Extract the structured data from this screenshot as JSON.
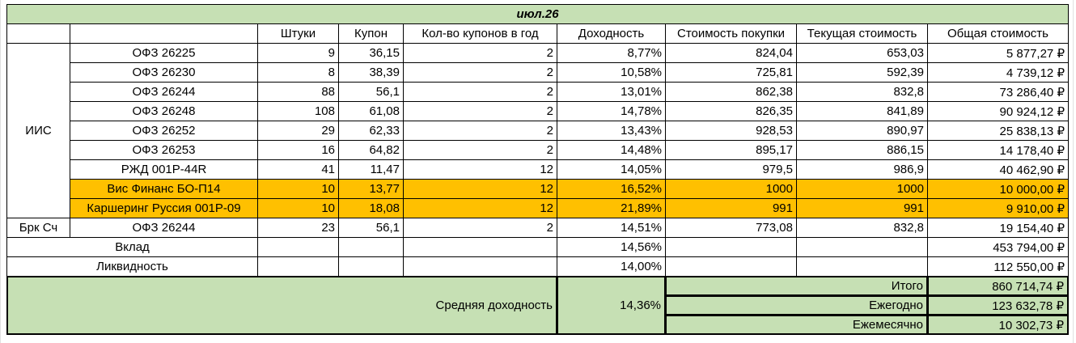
{
  "title": "июл.26",
  "headers": [
    "Штуки",
    "Купон",
    "Кол-во купонов в год",
    "Доходность",
    "Стоимость покупки",
    "Текущая стоимость",
    "Общая стоимость"
  ],
  "sections": [
    {
      "label": "ИИС",
      "rows": [
        {
          "name": "ОФЗ 26225",
          "values": [
            "9",
            "36,15",
            "2",
            "8,77%",
            "824,04",
            "653,03",
            "5 877,27 ₽"
          ]
        },
        {
          "name": "ОФЗ 26230",
          "values": [
            "8",
            "38,39",
            "2",
            "10,58%",
            "725,81",
            "592,39",
            "4 739,12 ₽"
          ]
        },
        {
          "name": "ОФЗ 26244",
          "values": [
            "88",
            "56,1",
            "2",
            "13,01%",
            "862,38",
            "832,8",
            "73 286,40 ₽"
          ]
        },
        {
          "name": "ОФЗ 26248",
          "values": [
            "108",
            "61,08",
            "2",
            "14,78%",
            "826,35",
            "841,89",
            "90 924,12 ₽"
          ]
        },
        {
          "name": "ОФЗ 26252",
          "values": [
            "29",
            "62,33",
            "2",
            "13,43%",
            "928,53",
            "890,97",
            "25 838,13 ₽"
          ]
        },
        {
          "name": "ОФЗ 26253",
          "values": [
            "16",
            "64,82",
            "2",
            "14,48%",
            "895,17",
            "886,15",
            "14 178,40 ₽"
          ]
        },
        {
          "name": "РЖД 001P-44R",
          "values": [
            "41",
            "11,47",
            "12",
            "14,05%",
            "979,5",
            "986,9",
            "40 462,90 ₽"
          ]
        },
        {
          "name": "Вис Финанс БО-П14",
          "fill": "#ffc000",
          "values": [
            "10",
            "13,77",
            "12",
            "16,52%",
            "1000",
            "1000",
            "10 000,00 ₽"
          ]
        },
        {
          "name": "Каршеринг Руссия 001P-09",
          "fill": "#ffc000",
          "values": [
            "10",
            "18,08",
            "12",
            "21,89%",
            "991",
            "991",
            "9 910,00 ₽"
          ]
        }
      ]
    },
    {
      "label": "Брк Сч",
      "rows": [
        {
          "name": "ОФЗ 26244",
          "values": [
            "23",
            "56,1",
            "2",
            "14,51%",
            "773,08",
            "832,8",
            "19 154,40 ₽"
          ]
        }
      ]
    }
  ],
  "extra_rows": [
    {
      "name": "Вклад",
      "yield": "14,56%",
      "total": "453 794,00 ₽"
    },
    {
      "name": "Ликвидность",
      "yield": "14,00%",
      "total": "112 550,00 ₽"
    }
  ],
  "summary": {
    "label": "Средняя доходность",
    "value": "14,36%",
    "items": [
      {
        "label": "Итого",
        "value": "860 714,74 ₽"
      },
      {
        "label": "Ежегодно",
        "value": "123 632,78 ₽"
      },
      {
        "label": "Ежемесячно",
        "value": "10 302,73 ₽"
      }
    ]
  }
}
